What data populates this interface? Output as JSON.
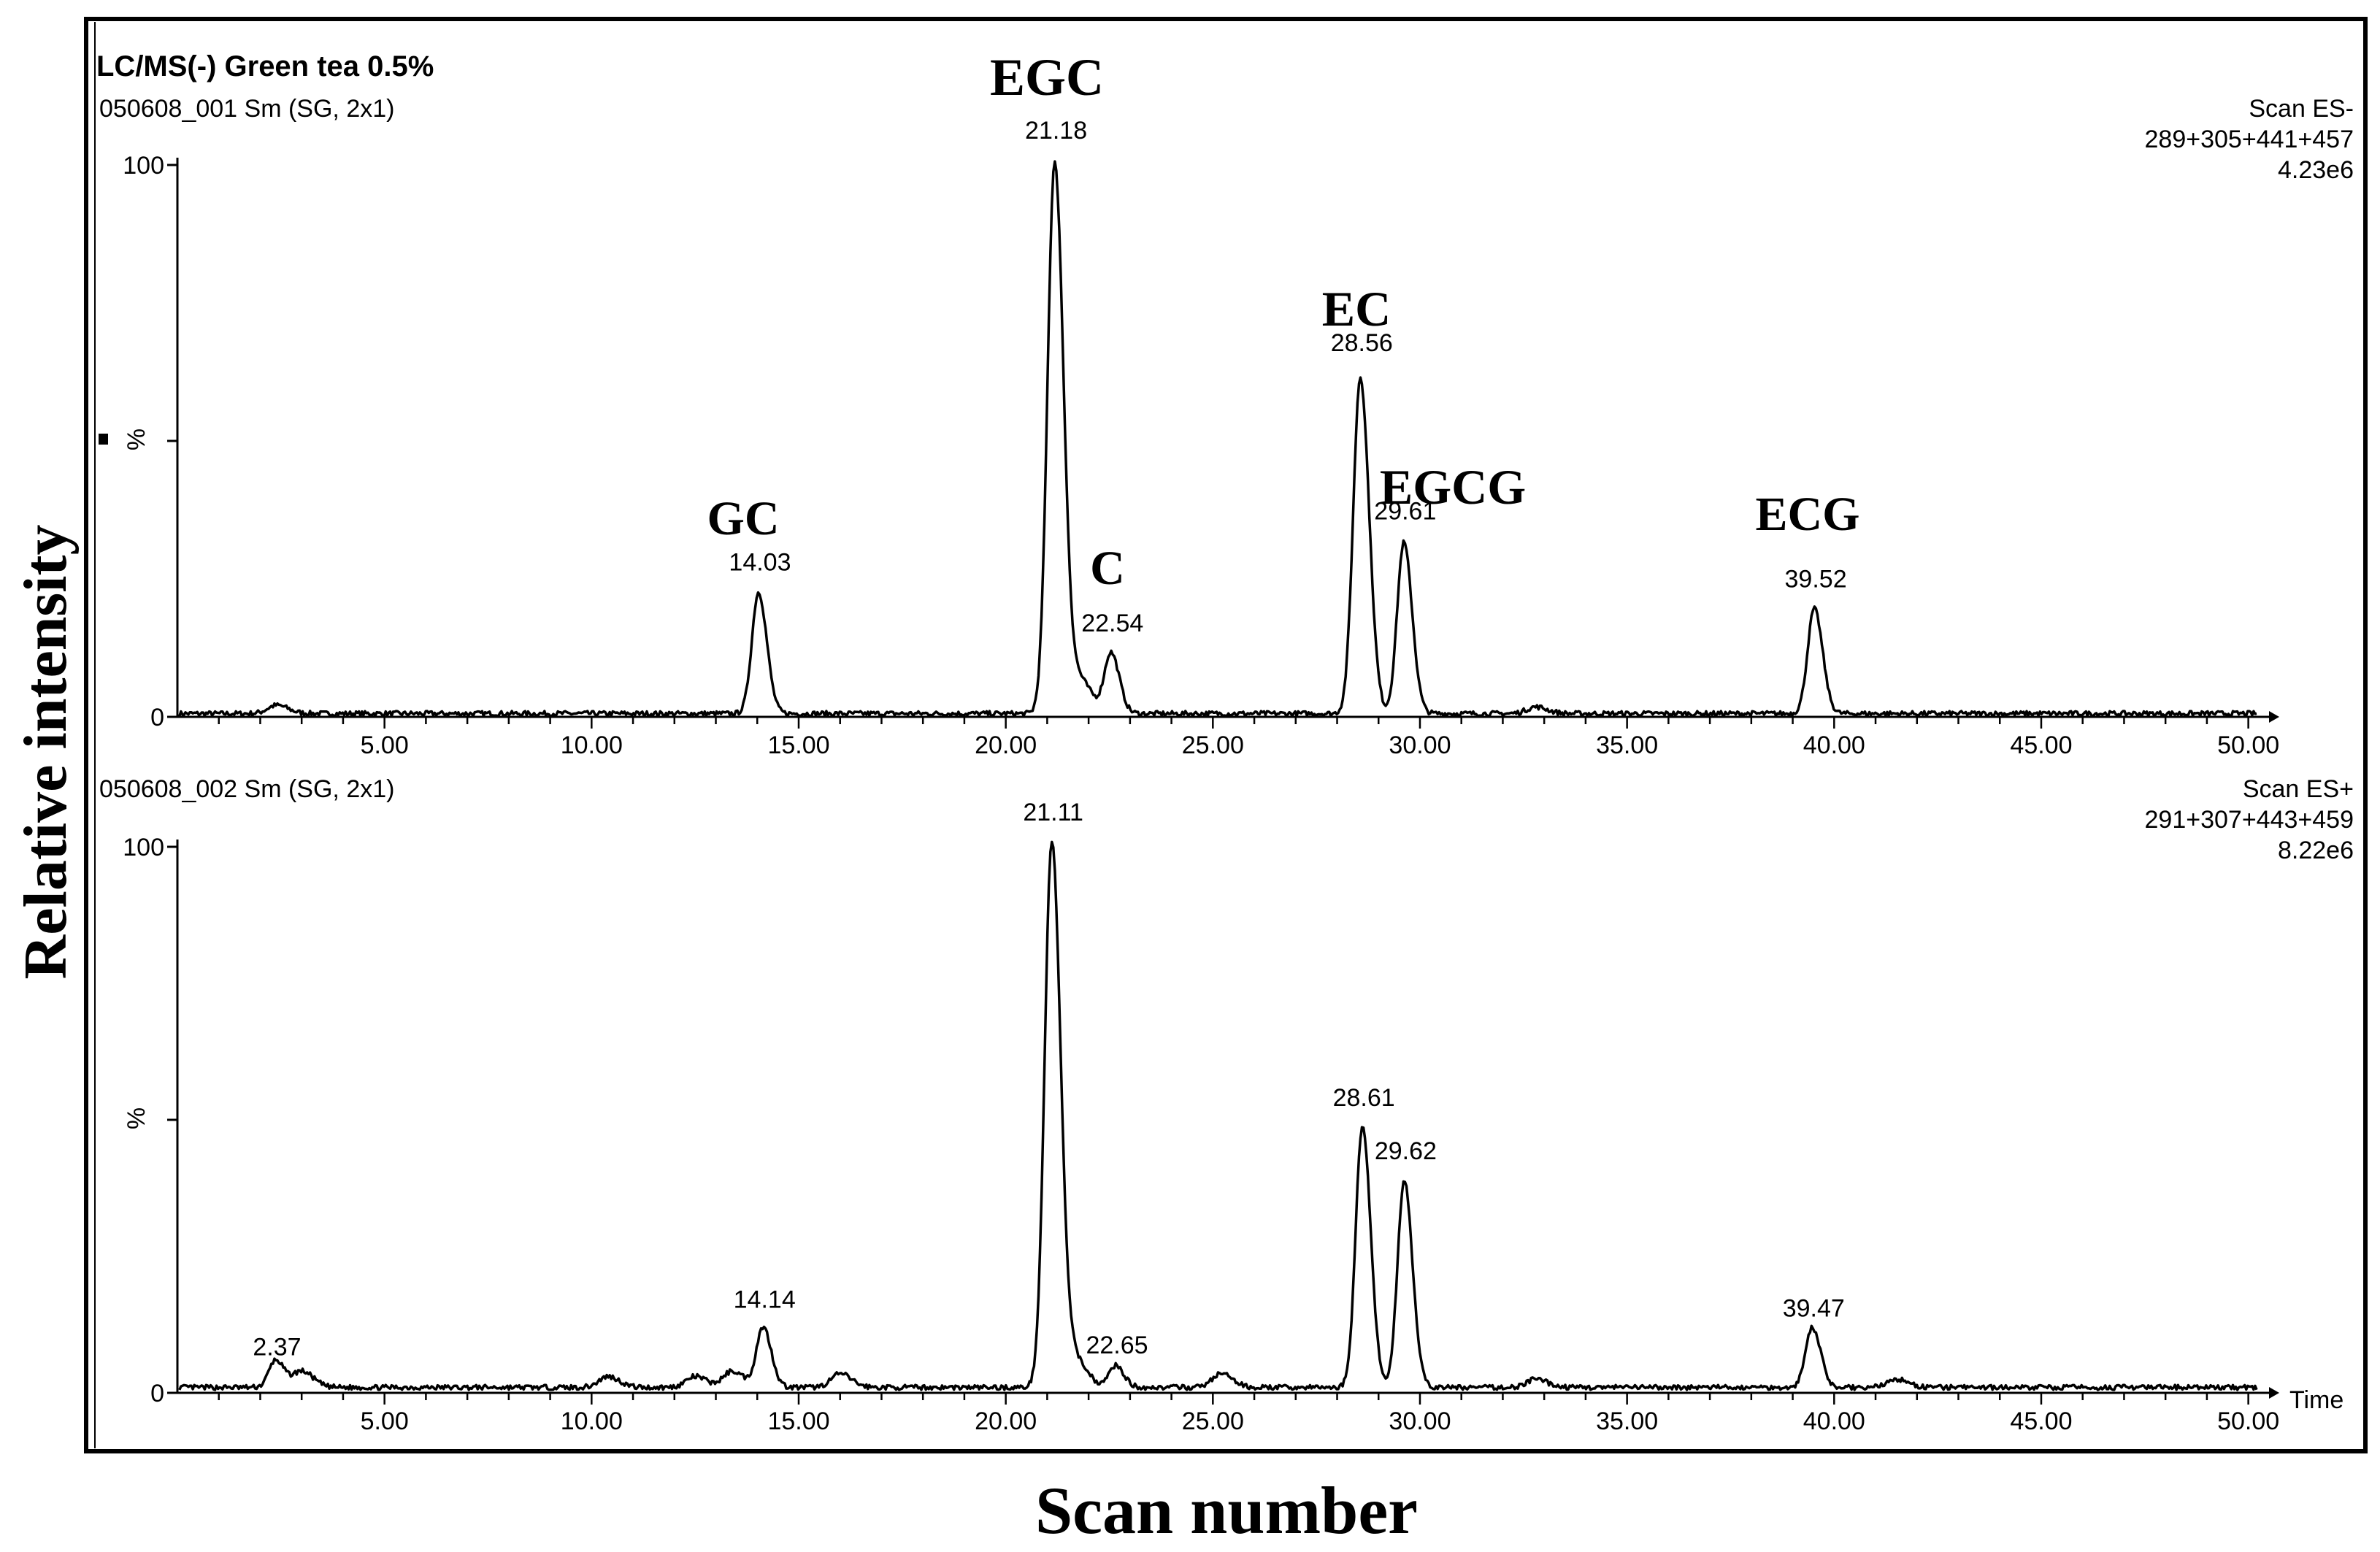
{
  "ylabel": "Relative intensity",
  "xlabel": "Scan number",
  "chart_data": [
    {
      "type": "line",
      "title": "LC/MS(-) Green tea 0.5%",
      "subtitle": "050608_001 Sm (SG, 2x1)",
      "scan_info": [
        "Scan ES-",
        "289+305+441+457",
        "4.23e6"
      ],
      "ylabel": "%",
      "xlim": [
        0,
        50.5
      ],
      "ylim": [
        0,
        100
      ],
      "yticks": [
        "0",
        "100"
      ],
      "xticks": [
        "5.00",
        "10.00",
        "15.00",
        "20.00",
        "25.00",
        "30.00",
        "35.00",
        "40.00",
        "45.00",
        "50.00"
      ],
      "peaks": [
        {
          "rt": 14.03,
          "height": 22,
          "label": "14.03",
          "compound": "GC"
        },
        {
          "rt": 21.18,
          "height": 100,
          "label": "21.18",
          "compound": "EGC"
        },
        {
          "rt": 22.54,
          "height": 11,
          "label": "22.54",
          "compound": "C"
        },
        {
          "rt": 28.56,
          "height": 61,
          "label": "28.56",
          "compound": "EC"
        },
        {
          "rt": 29.61,
          "height": 31,
          "label": "29.61",
          "compound": "EGCG"
        },
        {
          "rt": 39.52,
          "height": 19,
          "label": "39.52",
          "compound": "ECG"
        }
      ],
      "minor": [
        {
          "rt": 2.4,
          "height": 1.5
        },
        {
          "rt": 21.8,
          "height": 6
        },
        {
          "rt": 32.8,
          "height": 1.2
        }
      ],
      "baseline": 0.6
    },
    {
      "type": "line",
      "subtitle": "050608_002 Sm (SG, 2x1)",
      "scan_info": [
        "Scan ES+",
        "291+307+443+459",
        "8.22e6"
      ],
      "ylabel": "%",
      "xaxis_label": "Time",
      "xlim": [
        0,
        50.5
      ],
      "ylim": [
        0,
        100
      ],
      "yticks": [
        "0",
        "100"
      ],
      "xticks": [
        "5.00",
        "10.00",
        "15.00",
        "20.00",
        "25.00",
        "30.00",
        "35.00",
        "40.00",
        "45.00",
        "50.00"
      ],
      "peaks": [
        {
          "rt": 2.37,
          "height": 5,
          "label": "2.37"
        },
        {
          "rt": 14.14,
          "height": 11,
          "label": "14.14"
        },
        {
          "rt": 21.11,
          "height": 100,
          "label": "21.11"
        },
        {
          "rt": 22.65,
          "height": 4,
          "label": "22.65"
        },
        {
          "rt": 28.61,
          "height": 48,
          "label": "28.61"
        },
        {
          "rt": 29.62,
          "height": 38,
          "label": "29.62"
        },
        {
          "rt": 39.47,
          "height": 11,
          "label": "39.47"
        }
      ],
      "minor": [
        {
          "rt": 3.0,
          "height": 3
        },
        {
          "rt": 10.4,
          "height": 2
        },
        {
          "rt": 12.5,
          "height": 2
        },
        {
          "rt": 13.4,
          "height": 3
        },
        {
          "rt": 16.0,
          "height": 2.5
        },
        {
          "rt": 21.7,
          "height": 5
        },
        {
          "rt": 25.2,
          "height": 2.5
        },
        {
          "rt": 32.8,
          "height": 1.5
        },
        {
          "rt": 41.5,
          "height": 1.5
        }
      ],
      "baseline": 1.0
    }
  ]
}
